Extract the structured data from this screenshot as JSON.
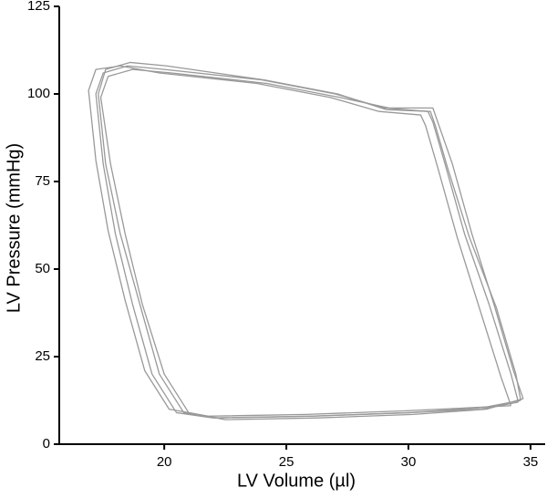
{
  "chart_data": {
    "type": "line",
    "x_label": "LV Volume (µl)",
    "y_label": "LV Pressure (mmHg)",
    "xlim": [
      15.7,
      35.6
    ],
    "ylim": [
      0,
      125
    ],
    "xticks": [
      20,
      25,
      30,
      35
    ],
    "yticks": [
      0,
      25,
      50,
      75,
      100,
      125
    ],
    "grid": false,
    "series": [
      {
        "color": "#999999",
        "x": [
          34.5,
          34.2,
          33.3,
          32.3,
          31.5,
          31.0,
          30.8,
          29.0,
          27.0,
          24.0,
          20.0,
          18.5,
          17.5,
          17.2,
          17.5,
          18.0,
          18.7,
          19.5,
          20.5,
          22.0,
          26.0,
          30.0,
          33.0,
          34.5
        ],
        "values": [
          12,
          20,
          40,
          60,
          80,
          92,
          95,
          96,
          100,
          104,
          107,
          108,
          106,
          100,
          80,
          60,
          40,
          20,
          9,
          7.5,
          8,
          9,
          10,
          12
        ]
      },
      {
        "color": "#999999",
        "x": [
          34.7,
          34.3,
          33.5,
          32.6,
          31.8,
          31.2,
          31.0,
          29.2,
          27.2,
          24.2,
          20.3,
          18.7,
          17.7,
          17.4,
          17.8,
          18.4,
          19.1,
          20.0,
          21.0,
          22.5,
          26.3,
          30.2,
          33.2,
          34.7
        ],
        "values": [
          13,
          21,
          40,
          60,
          80,
          92,
          96,
          96,
          99,
          103,
          106,
          107,
          105,
          99,
          80,
          60,
          40,
          20,
          9,
          7,
          7.5,
          8.5,
          10,
          13
        ]
      },
      {
        "color": "#999999",
        "x": [
          34.2,
          33.8,
          32.9,
          32.0,
          31.2,
          30.7,
          30.5,
          28.8,
          26.8,
          23.8,
          19.8,
          18.2,
          17.2,
          16.9,
          17.2,
          17.7,
          18.4,
          19.2,
          20.2,
          21.8,
          25.8,
          29.8,
          32.8,
          34.2
        ],
        "values": [
          11,
          19,
          39,
          59,
          79,
          91,
          94,
          95,
          99,
          103,
          106,
          108,
          107,
          101,
          81,
          61,
          41,
          21,
          10,
          8,
          8.5,
          9.5,
          10.5,
          11
        ]
      },
      {
        "color": "#999999",
        "x": [
          34.6,
          34.4,
          33.6,
          32.5,
          31.6,
          31.1,
          30.9,
          29.1,
          27.1,
          24.1,
          20.1,
          18.6,
          17.6,
          17.3,
          17.6,
          18.2,
          19.0,
          19.8,
          20.8,
          22.2,
          26.1,
          30.1,
          33.1,
          34.6
        ],
        "values": [
          12.5,
          20,
          39,
          59,
          79,
          91,
          95,
          95.5,
          100,
          104,
          108,
          109,
          107,
          100,
          80,
          60,
          40,
          20,
          9,
          7.5,
          8,
          9,
          10.5,
          12.5
        ]
      }
    ]
  }
}
